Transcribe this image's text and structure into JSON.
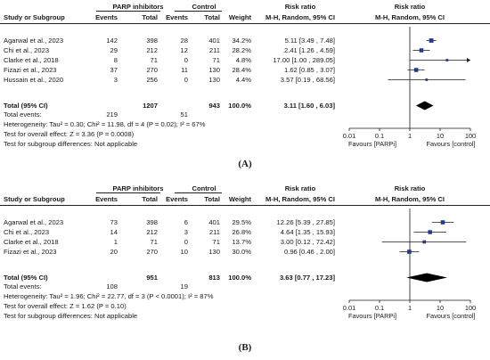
{
  "panels": [
    {
      "caption": "(A)",
      "header": {
        "group1": "PARP inhibitors",
        "group2": "Control",
        "rr_top": "Risk ratio",
        "rr_top2": "Risk ratio",
        "study": "Study or Subgroup",
        "events1": "Events",
        "total1": "Total",
        "events2": "Events",
        "total2": "Total",
        "weight": "Weight",
        "method": "M-H, Random, 95% CI",
        "method2": "M-H, Random, 95% CI"
      },
      "rows": [
        {
          "study": "Agarwal et al., 2023",
          "e1": "142",
          "t1": "398",
          "e2": "28",
          "t2": "401",
          "w": "34.2%",
          "ci": "5.11 [3.49 , 7.48]"
        },
        {
          "study": "Chi et al., 2023",
          "e1": "29",
          "t1": "212",
          "e2": "12",
          "t2": "211",
          "w": "28.2%",
          "ci": "2.41 [1.26 , 4.59]"
        },
        {
          "study": "Clarke et al., 2018",
          "e1": "8",
          "t1": "71",
          "e2": "0",
          "t2": "71",
          "w": "4.8%",
          "ci": "17.00 [1.00 , 289.05]"
        },
        {
          "study": "Fizazi et al., 2023",
          "e1": "37",
          "t1": "270",
          "e2": "11",
          "t2": "130",
          "w": "28.4%",
          "ci": "1.62 [0.85 , 3.07]"
        },
        {
          "study": "Hussain et al., 2020",
          "e1": "3",
          "t1": "256",
          "e2": "0",
          "t2": "130",
          "w": "4.4%",
          "ci": "3.57 [0.19 , 68.56]"
        }
      ],
      "total": {
        "label": "Total (95% CI)",
        "t1": "1207",
        "t2": "943",
        "w": "100.0%",
        "ci": "3.11 [1.60 , 6.03]"
      },
      "events": {
        "label": "Total events:",
        "e1": "219",
        "e2": "51"
      },
      "notes": [
        "Heterogeneity: Tau² = 0.30; Chi² = 11.98, df = 4 (P = 0.02); I² = 67%",
        "Test for overall effect: Z = 3.36 (P = 0.0008)",
        "Test for subgroup differences: Not applicable"
      ],
      "axis_ticks": [
        "0.01",
        "0.1",
        "1",
        "10",
        "100"
      ],
      "favours_left": "Favours [PARPi]",
      "favours_right": "Favours [control]"
    },
    {
      "caption": "(B)",
      "header": {
        "group1": "PARP inhibitors",
        "group2": "Control",
        "rr_top": "Risk ratio",
        "rr_top2": "Risk ratio",
        "study": "Study or Subgroup",
        "events1": "Events",
        "total1": "Total",
        "events2": "Events",
        "total2": "Total",
        "weight": "Weight",
        "method": "M-H, Random, 95% CI",
        "method2": "M-H, Random, 95% CI"
      },
      "rows": [
        {
          "study": "Agarwal et al., 2023",
          "e1": "73",
          "t1": "398",
          "e2": "6",
          "t2": "401",
          "w": "29.5%",
          "ci": "12.26 [5.39 , 27.85]"
        },
        {
          "study": "Chi et al., 2023",
          "e1": "14",
          "t1": "212",
          "e2": "3",
          "t2": "211",
          "w": "26.8%",
          "ci": "4.64 [1.35 , 15.93]"
        },
        {
          "study": "Clarke et al., 2018",
          "e1": "1",
          "t1": "71",
          "e2": "0",
          "t2": "71",
          "w": "13.7%",
          "ci": "3.00 [0.12 , 72.42]"
        },
        {
          "study": "Fizazi et al., 2023",
          "e1": "20",
          "t1": "270",
          "e2": "10",
          "t2": "130",
          "w": "30.0%",
          "ci": "0.96 [0.46 , 2.00]"
        }
      ],
      "total": {
        "label": "Total (95% CI)",
        "t1": "951",
        "t2": "813",
        "w": "100.0%",
        "ci": "3.63 [0.77 , 17.23]"
      },
      "events": {
        "label": "Total events:",
        "e1": "108",
        "e2": "19"
      },
      "notes": [
        "Heterogeneity: Tau² = 1.96; Chi² = 22.77, df = 3 (P < 0.0001); I² = 87%",
        "Test for overall effect: Z = 1.62 (P = 0.10)",
        "Test for subgroup differences: Not applicable"
      ],
      "axis_ticks": [
        "0.01",
        "0.1",
        "1",
        "10",
        "100"
      ],
      "favours_left": "Favours [PARPi]",
      "favours_right": "Favours [control]"
    }
  ],
  "chart_data": [
    {
      "type": "forest",
      "scale": "log",
      "xlim": [
        0.01,
        100
      ],
      "x_ticks": [
        0.01,
        0.1,
        1,
        10,
        100
      ],
      "studies": [
        {
          "name": "Agarwal et al., 2023",
          "rr": 5.11,
          "lo": 3.49,
          "hi": 7.48,
          "weight": 34.2
        },
        {
          "name": "Chi et al., 2023",
          "rr": 2.41,
          "lo": 1.26,
          "hi": 4.59,
          "weight": 28.2
        },
        {
          "name": "Clarke et al., 2018",
          "rr": 17.0,
          "lo": 1.0,
          "hi": 289.05,
          "weight": 4.8
        },
        {
          "name": "Fizazi et al., 2023",
          "rr": 1.62,
          "lo": 0.85,
          "hi": 3.07,
          "weight": 28.4
        },
        {
          "name": "Hussain et al., 2020",
          "rr": 3.57,
          "lo": 0.19,
          "hi": 68.56,
          "weight": 4.4
        }
      ],
      "pooled": {
        "rr": 3.11,
        "lo": 1.6,
        "hi": 6.03
      }
    },
    {
      "type": "forest",
      "scale": "log",
      "xlim": [
        0.01,
        100
      ],
      "x_ticks": [
        0.01,
        0.1,
        1,
        10,
        100
      ],
      "studies": [
        {
          "name": "Agarwal et al., 2023",
          "rr": 12.26,
          "lo": 5.39,
          "hi": 27.85,
          "weight": 29.5
        },
        {
          "name": "Chi et al., 2023",
          "rr": 4.64,
          "lo": 1.35,
          "hi": 15.93,
          "weight": 26.8
        },
        {
          "name": "Clarke et al., 2018",
          "rr": 3.0,
          "lo": 0.12,
          "hi": 72.42,
          "weight": 13.7
        },
        {
          "name": "Fizazi et al., 2023",
          "rr": 0.96,
          "lo": 0.46,
          "hi": 2.0,
          "weight": 30.0
        }
      ],
      "pooled": {
        "rr": 3.63,
        "lo": 0.77,
        "hi": 17.23
      }
    }
  ],
  "colors": {
    "marker": "#1f3a93",
    "line": "#1a1a1a"
  }
}
